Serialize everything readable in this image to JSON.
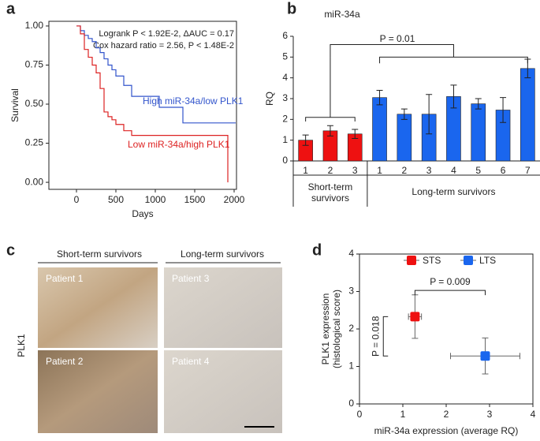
{
  "chart_data": [
    {
      "type": "step",
      "panel_label": "a",
      "xlabel": "Days",
      "ylabel": "Survival",
      "xlim": [
        -350,
        2030
      ],
      "xticks": [
        0,
        500,
        1000,
        1500,
        2000
      ],
      "ylim": [
        -0.045,
        1.03
      ],
      "yticks": [
        {
          "value": 0,
          "label": "0.00"
        },
        {
          "value": 0.25,
          "label": "0.25"
        },
        {
          "value": 0.5,
          "label": "0.50"
        },
        {
          "value": 0.75,
          "label": "0.75"
        },
        {
          "value": 1,
          "label": "1.00"
        }
      ],
      "annotations": [
        "Logrank P < 1.92E-2, ΔAUC = 0.17",
        "Cox hazard ratio = 2.56, P < 1.48E-2"
      ],
      "series": [
        {
          "name": "High miR-34a/low PLK1",
          "color": "#3355cc",
          "x": [
            0,
            50,
            100,
            150,
            200,
            250,
            300,
            350,
            400,
            450,
            500,
            600,
            700,
            1050,
            1350,
            2020
          ],
          "values": [
            1,
            0.97,
            0.94,
            0.92,
            0.9,
            0.86,
            0.83,
            0.79,
            0.75,
            0.72,
            0.68,
            0.62,
            0.55,
            0.48,
            0.38,
            0.38
          ]
        },
        {
          "name": "Low miR-34a/high PLK1",
          "color": "#dd2222",
          "x": [
            0,
            50,
            100,
            150,
            200,
            250,
            300,
            350,
            400,
            450,
            500,
            600,
            700,
            1300,
            1920
          ],
          "values": [
            1,
            0.95,
            0.85,
            0.8,
            0.75,
            0.7,
            0.6,
            0.45,
            0.42,
            0.4,
            0.37,
            0.33,
            0.3,
            0.3,
            0
          ]
        }
      ]
    },
    {
      "type": "bar",
      "panel_label": "b",
      "title": "miR-34a",
      "ylabel": "RQ",
      "ylim": [
        0,
        6
      ],
      "yticks": [
        0,
        1,
        2,
        3,
        4,
        5,
        6
      ],
      "categories": [
        "1",
        "2",
        "3",
        "1",
        "2",
        "3",
        "4",
        "5",
        "6",
        "7"
      ],
      "values": [
        1.0,
        1.45,
        1.3,
        3.05,
        2.25,
        2.25,
        3.1,
        2.75,
        2.45,
        4.45
      ],
      "errors": [
        0.25,
        0.25,
        0.22,
        0.35,
        0.25,
        0.95,
        0.55,
        0.25,
        0.6,
        0.45
      ],
      "colors": [
        "#ee1111",
        "#ee1111",
        "#ee1111",
        "#1a66ee",
        "#1a66ee",
        "#1a66ee",
        "#1a66ee",
        "#1a66ee",
        "#1a66ee",
        "#1a66ee"
      ],
      "groups": [
        [
          "Short-term",
          "survivors"
        ],
        [
          "Long-term survivors"
        ]
      ],
      "annotation": "P = 0.01"
    },
    {
      "type": "scatter",
      "panel_label": "d",
      "xlabel": "miR-34a expression (average RQ)",
      "ylabel": [
        "PLK1 expression",
        "(histological score)"
      ],
      "xlim": [
        0,
        4
      ],
      "xticks": [
        0,
        1,
        2,
        3,
        4
      ],
      "ylim": [
        0,
        4
      ],
      "yticks": [
        0,
        1,
        2,
        3,
        4
      ],
      "annotations": [
        "P = 0.009",
        "P = 0.018"
      ],
      "series": [
        {
          "name": "STS",
          "color": "#ee1111",
          "x": [
            1.28
          ],
          "values": [
            2.33
          ],
          "xerr": [
            0.15
          ],
          "yerr": [
            0.58
          ]
        },
        {
          "name": "LTS",
          "color": "#1a66ee",
          "x": [
            2.9
          ],
          "values": [
            1.28
          ],
          "xerr": [
            0.8
          ],
          "yerr": [
            0.48
          ]
        }
      ]
    }
  ],
  "panel_c": {
    "panel_label": "c",
    "groups": [
      "Short-term survivors",
      "Long-term survivors"
    ],
    "ylabel": "PLK1",
    "patients": [
      "Patient 1",
      "Patient 3",
      "Patient 2",
      "Patient 4"
    ]
  }
}
